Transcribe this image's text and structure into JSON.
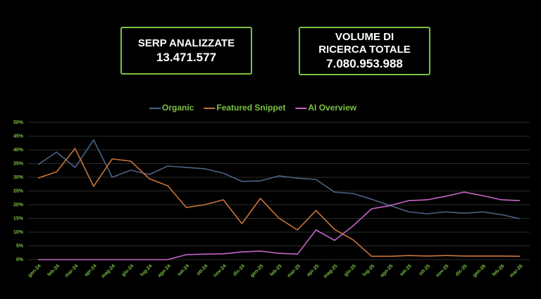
{
  "kpis": [
    {
      "label": [
        "SERP ANALIZZATE"
      ],
      "value": "13.471.577"
    },
    {
      "label": [
        "VOLUME DI",
        "RICERCA TOTALE"
      ],
      "value": "7.080.953.988"
    }
  ],
  "chart_data": {
    "type": "line",
    "categories": [
      "gen-24",
      "feb-24",
      "mar-24",
      "apr-24",
      "mag-24",
      "giu-24",
      "lug-24",
      "ago-24",
      "set-24",
      "ott-24",
      "nov-24",
      "dic-24",
      "gen-25",
      "feb-25",
      "mar-25",
      "apr-25",
      "mag-25",
      "giu-25",
      "lug-25",
      "ago-25",
      "set-25",
      "ott-25",
      "nov-25",
      "dic-25",
      "gen-26",
      "feb-26",
      "mar-26"
    ],
    "series": [
      {
        "name": "Organic",
        "color": "#4b6382",
        "values": [
          34.6,
          39.2,
          33.6,
          43.6,
          30,
          32.6,
          31,
          34.1,
          33.6,
          33.1,
          31.5,
          28.5,
          28.7,
          30.5,
          29.7,
          29.2,
          24.6,
          24.1,
          22,
          19.7,
          17.4,
          16.7,
          17.4,
          16.9,
          17.4,
          16.4,
          14.9
        ]
      },
      {
        "name": "Featured Snippet",
        "color": "#c9743a",
        "values": [
          29.7,
          32,
          40.5,
          26.7,
          36.7,
          35.9,
          29.5,
          26.9,
          19,
          20,
          21.8,
          13.1,
          22.3,
          15.1,
          10.8,
          17.9,
          11,
          7.2,
          1.2,
          1.2,
          1.5,
          1.3,
          1.5,
          1.3,
          1.3,
          1.3,
          1.2
        ]
      },
      {
        "name": "AI Overview",
        "color": "#c665c9",
        "values": [
          0,
          0,
          0,
          0,
          0,
          0,
          0,
          0,
          1.8,
          2,
          2.1,
          2.8,
          3.1,
          2.3,
          2,
          10.8,
          7,
          12.3,
          18.5,
          19.7,
          21.5,
          21.8,
          23.1,
          24.6,
          23.3,
          21.8,
          21.5
        ]
      }
    ],
    "ylim": [
      0,
      50
    ],
    "yticks": [
      {
        "value": 0,
        "label": "0%"
      },
      {
        "value": 5,
        "label": "5%"
      },
      {
        "value": 10,
        "label": "10%"
      },
      {
        "value": 15,
        "label": "15%"
      },
      {
        "value": 20,
        "label": "20%"
      },
      {
        "value": 25,
        "label": "25%"
      },
      {
        "value": 30,
        "label": "30%"
      },
      {
        "value": 35,
        "label": "35%"
      },
      {
        "value": 40,
        "label": "40%"
      },
      {
        "value": 45,
        "label": "45%"
      },
      {
        "value": 50,
        "label": "50%"
      }
    ],
    "grid": true
  }
}
